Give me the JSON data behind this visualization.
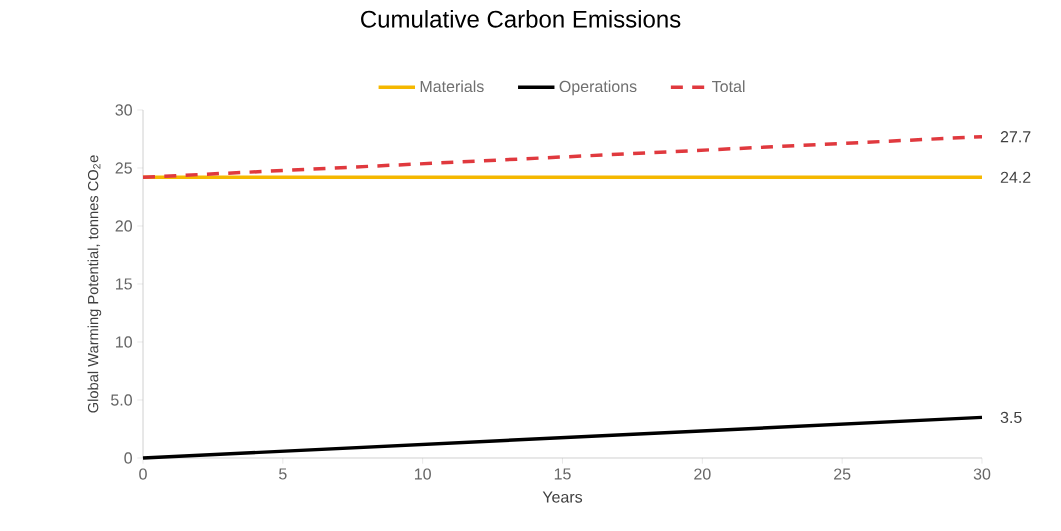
{
  "chart_data": {
    "type": "line",
    "title": "Cumulative Carbon Emissions",
    "xlabel": "Years",
    "ylabel": "Global Warming Potential, tonnes CO$_{2}$e",
    "x": [
      0,
      30
    ],
    "series": [
      {
        "name": "Materials",
        "color": "#f5b800",
        "values": [
          24.2,
          24.2
        ],
        "value_labels": [
          null,
          "24.2"
        ]
      },
      {
        "name": "Operations",
        "color": "#000000",
        "values": [
          0,
          3.5
        ],
        "value_labels": [
          null,
          "3.5"
        ]
      },
      {
        "name": "Total",
        "color": "#e0393e",
        "values": [
          24.2,
          27.7
        ],
        "value_labels": [
          null,
          "27.7"
        ],
        "line_style": "dashed"
      }
    ],
    "xlim": [
      0,
      30
    ],
    "xticks": [
      0,
      5,
      10,
      15,
      20,
      25,
      30
    ],
    "ylim": [
      0,
      30
    ],
    "yticks": [
      0,
      {
        "value": 5,
        "label": "5.0"
      },
      10,
      15,
      20,
      25,
      30
    ],
    "grid": false,
    "legend": "top",
    "marker": "none"
  }
}
